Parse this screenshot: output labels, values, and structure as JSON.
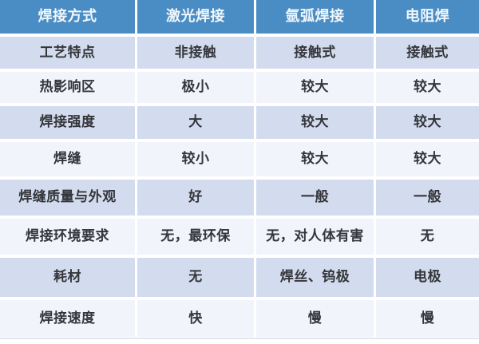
{
  "table": {
    "title_semantic": "welding-methods-comparison",
    "header": [
      "焊接方式",
      "激光焊接",
      "氩弧焊接",
      "电阻焊"
    ],
    "rows": [
      [
        "工艺特点",
        "非接触",
        "接触式",
        "接触式"
      ],
      [
        "热影响区",
        "极小",
        "较大",
        "较大"
      ],
      [
        "焊接强度",
        "大",
        "较大",
        "较大"
      ],
      [
        "焊缝",
        "较小",
        "较大",
        "较大"
      ],
      [
        "焊缝质量与外观",
        "好",
        "一般",
        "一般"
      ],
      [
        "焊接环境要求",
        "无，最环保",
        "无，对人体有害",
        "无"
      ],
      [
        "耗材",
        "无",
        "焊丝、钨极",
        "电极"
      ],
      [
        "焊接速度",
        "快",
        "慢",
        "慢"
      ]
    ],
    "colors": {
      "header_bg": "#4a8dc5",
      "header_text": "#eff6fc",
      "row_odd_bg": "#d3dcee",
      "row_even_bg": "#f1f4fa",
      "body_text": "#35363b",
      "grid_gap": "#ffffff"
    }
  }
}
